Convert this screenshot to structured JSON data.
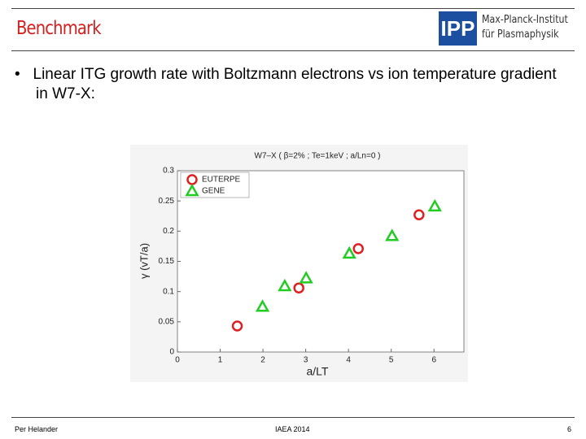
{
  "header": {
    "title": "Benchmark",
    "logo": "IPP",
    "institute": [
      "Max-Planck-Institut",
      "für Plasmaphysik"
    ]
  },
  "bullet": "Linear ITG growth rate with Boltzmann electrons vs ion temperature gradient in W7-X:",
  "chart_data": {
    "type": "scatter",
    "title": "W7–X ( β=2% ; Te=1keV ; a/Ln=0 )",
    "x_label": "a/LT",
    "y_label": "γ (vT/a)",
    "xlim": [
      0,
      6.7
    ],
    "ylim": [
      0,
      0.3
    ],
    "xticks": [
      0,
      1,
      2,
      3,
      4,
      5,
      6
    ],
    "yticks": [
      0,
      0.05,
      0.1,
      0.15,
      0.2,
      0.25,
      0.3
    ],
    "series": [
      {
        "name": "EUTERPE",
        "marker": "circle",
        "color": "#e02020",
        "x": [
          1.4,
          2.84,
          4.23,
          5.65
        ],
        "values": [
          0.043,
          0.106,
          0.171,
          0.227
        ]
      },
      {
        "name": "GENE",
        "marker": "triangle",
        "color": "#22cc22",
        "x": [
          1.99,
          2.51,
          3.01,
          4.02,
          5.02,
          6.02
        ],
        "values": [
          0.075,
          0.109,
          0.122,
          0.163,
          0.192,
          0.241
        ]
      }
    ]
  },
  "footer": {
    "author": "Per Helander",
    "event": "IAEA 2014",
    "page": "6"
  }
}
